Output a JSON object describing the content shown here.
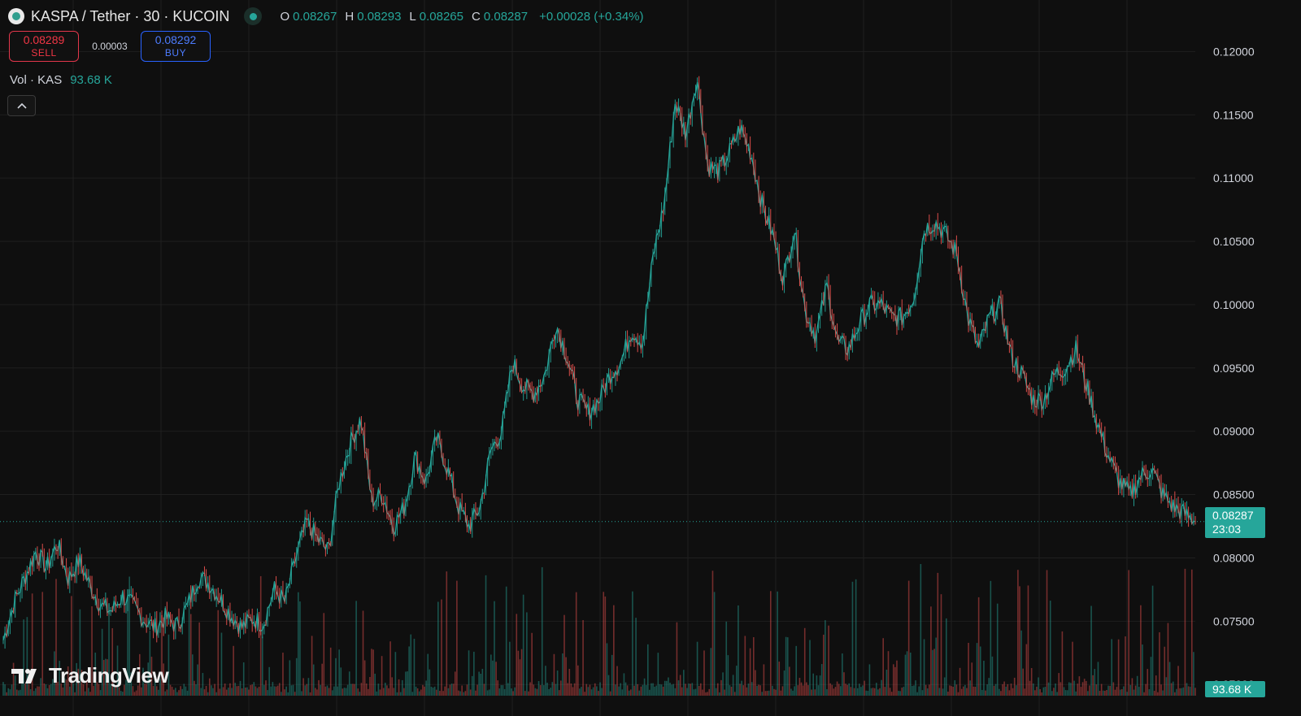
{
  "header": {
    "symbol": "KASPA / Tether · 30 · KUCOIN",
    "open_key": "O",
    "open": "0.08267",
    "high_key": "H",
    "high": "0.08293",
    "low_key": "L",
    "low": "0.08265",
    "close_key": "C",
    "close": "0.08287",
    "change": "+0.00028 (+0.34%)"
  },
  "trade": {
    "sell_price": "0.08289",
    "sell_label": "SELL",
    "spread": "0.00003",
    "buy_price": "0.08292",
    "buy_label": "BUY"
  },
  "volume_legend": {
    "label": "Vol · KAS",
    "value": "93.68 K"
  },
  "price_tag": {
    "price": "0.08287",
    "countdown": "23:03"
  },
  "volume_tag": "93.68 K",
  "branding": "TradingView",
  "colors": {
    "up": "#26a69a",
    "down": "#ef5350",
    "background": "#0f0f0f",
    "grid": "#1f1f1f"
  },
  "chart_data": {
    "type": "line",
    "title": "",
    "xlabel": "",
    "ylabel": "",
    "ylim": [
      0.0695,
      0.1215
    ],
    "y_ticks": [
      "0.12000",
      "0.11500",
      "0.11000",
      "0.10500",
      "0.10000",
      "0.09500",
      "0.09000",
      "0.08500",
      "0.08000",
      "0.07500",
      "0.07000"
    ],
    "current_price": 0.08287,
    "series": [
      {
        "values": [
          0.0735,
          0.0765,
          0.0785,
          0.0805,
          0.0792,
          0.0812,
          0.0783,
          0.0798,
          0.0778,
          0.0762,
          0.0758,
          0.077,
          0.0762,
          0.0751,
          0.0745,
          0.0753,
          0.0746,
          0.0762,
          0.0785,
          0.078,
          0.0768,
          0.0755,
          0.0745,
          0.0752,
          0.0748,
          0.0775,
          0.0765,
          0.08,
          0.0828,
          0.0815,
          0.0805,
          0.086,
          0.089,
          0.091,
          0.0845,
          0.085,
          0.0825,
          0.084,
          0.088,
          0.086,
          0.0895,
          0.087,
          0.084,
          0.0825,
          0.084,
          0.0885,
          0.09,
          0.0955,
          0.0935,
          0.093,
          0.0945,
          0.0985,
          0.096,
          0.0925,
          0.0915,
          0.0925,
          0.0945,
          0.0955,
          0.098,
          0.097,
          0.104,
          0.108,
          0.116,
          0.1135,
          0.118,
          0.111,
          0.1105,
          0.112,
          0.114,
          0.112,
          0.108,
          0.1055,
          0.102,
          0.106,
          0.0995,
          0.0975,
          0.1015,
          0.097,
          0.0965,
          0.0985,
          0.1,
          0.1,
          0.099,
          0.099,
          0.1005,
          0.106,
          0.1065,
          0.1055,
          0.104,
          0.099,
          0.0965,
          0.099,
          0.1,
          0.096,
          0.0945,
          0.0925,
          0.0925,
          0.0945,
          0.095,
          0.0965,
          0.0935,
          0.0905,
          0.088,
          0.086,
          0.085,
          0.0865,
          0.087,
          0.085,
          0.084,
          0.0835,
          0.0829
        ]
      }
    ]
  }
}
